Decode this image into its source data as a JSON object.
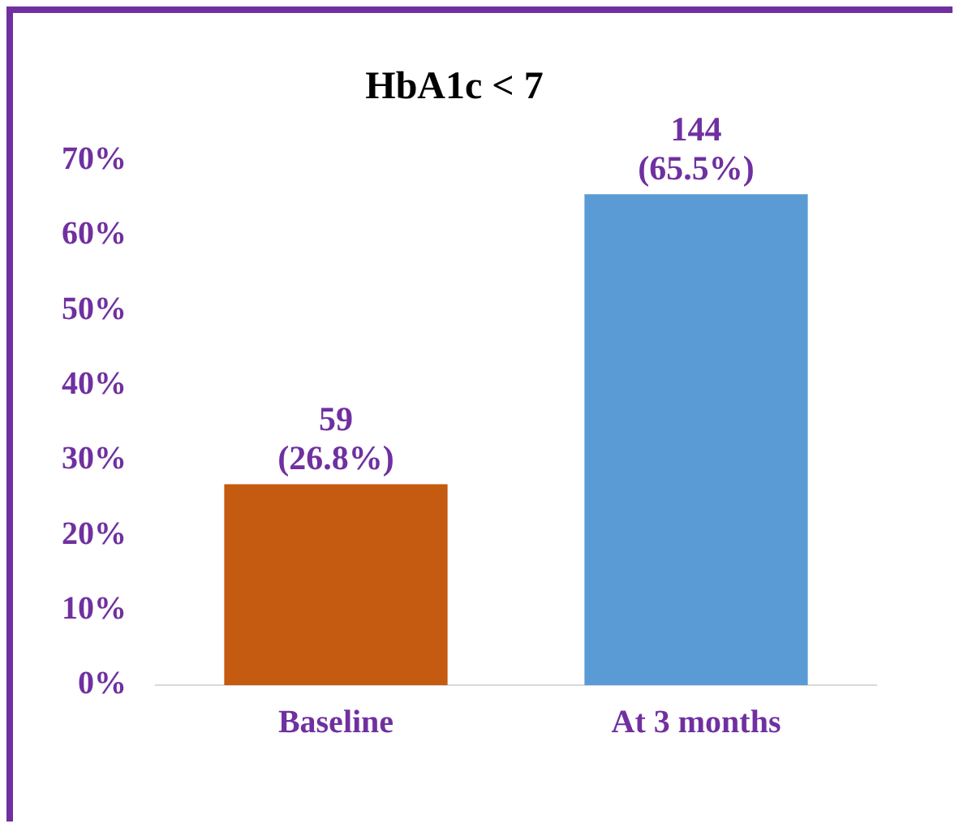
{
  "chart_data": {
    "type": "bar",
    "title": "HbA1c < 7",
    "categories": [
      "Baseline",
      "At 3 months"
    ],
    "values": [
      26.8,
      65.5
    ],
    "colors": [
      "#c55a11",
      "#5b9bd5"
    ],
    "value_labels": [
      "59\n(26.8%)",
      "144\n(65.5%)"
    ],
    "ylim": [
      0,
      70
    ],
    "yticks": [
      {
        "value": 0,
        "label": "0%"
      },
      {
        "value": 10,
        "label": "10%"
      },
      {
        "value": 20,
        "label": "20%"
      },
      {
        "value": 30,
        "label": "30%"
      },
      {
        "value": 40,
        "label": "40%"
      },
      {
        "value": 50,
        "label": "50%"
      },
      {
        "value": 60,
        "label": "60%"
      },
      {
        "value": 70,
        "label": "70%"
      }
    ],
    "grid": false,
    "legend": false
  }
}
